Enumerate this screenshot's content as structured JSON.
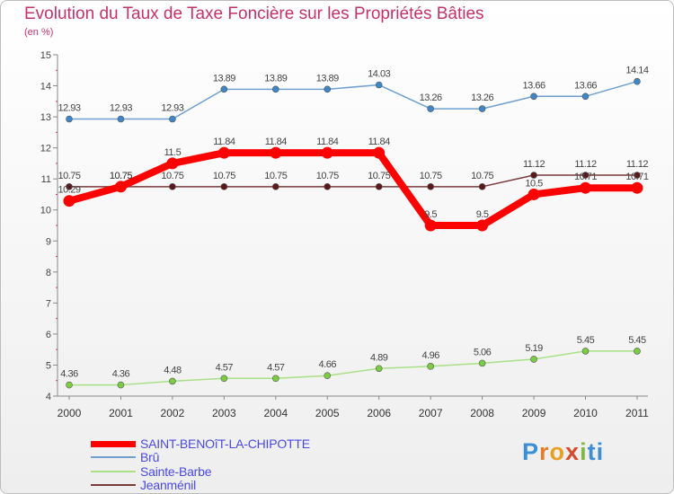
{
  "chart_data": {
    "type": "line",
    "title": "Evolution du Taux de Taxe Foncière sur les Propriétés Bâties",
    "ylabel": "(en %)",
    "xlabel": "",
    "x": [
      "2000",
      "2001",
      "2002",
      "2003",
      "2004",
      "2005",
      "2006",
      "2007",
      "2008",
      "2009",
      "2010",
      "2011"
    ],
    "ylim": [
      4,
      15
    ],
    "yticks": [
      "4",
      "5",
      "6",
      "7",
      "8",
      "9",
      "10",
      "11",
      "12",
      "13",
      "14",
      "15"
    ],
    "series": [
      {
        "name": "Brû",
        "color": "#6fa0cf",
        "point": "#3f86c6",
        "values": [
          12.93,
          12.93,
          12.93,
          13.89,
          13.89,
          13.89,
          14.03,
          13.26,
          13.26,
          13.66,
          13.66,
          14.14
        ],
        "labels": [
          "12.93",
          "12.93",
          "12.93",
          "13.89",
          "13.89",
          "13.89",
          "14.03",
          "13.26",
          "13.26",
          "13.66",
          "13.66",
          "14.14"
        ]
      },
      {
        "name": "Sainte-Barbe",
        "color": "#a8e086",
        "point": "#7ccc42",
        "values": [
          4.36,
          4.36,
          4.48,
          4.57,
          4.57,
          4.66,
          4.89,
          4.96,
          5.06,
          5.19,
          5.45,
          5.45
        ],
        "labels": [
          "4.36",
          "4.36",
          "4.48",
          "4.57",
          "4.57",
          "4.66",
          "4.89",
          "4.96",
          "5.06",
          "5.19",
          "5.45",
          "5.45"
        ]
      },
      {
        "name": "Jeanménil",
        "color": "#7a3a3a",
        "point": "#5a1818",
        "values": [
          10.75,
          10.75,
          10.75,
          10.75,
          10.75,
          10.75,
          10.75,
          10.75,
          10.75,
          11.12,
          11.12,
          11.12
        ],
        "labels": [
          "10.75",
          "10.75",
          "10.75",
          "10.75",
          "10.75",
          "10.75",
          "10.75",
          "10.75",
          "10.75",
          "11.12",
          "11.12",
          "11.12"
        ]
      },
      {
        "name": "SAINT-BENOîT-LA-CHIPOTTE",
        "color": "#ff0000",
        "point": "#ff0000",
        "values": [
          10.29,
          10.75,
          11.5,
          11.84,
          11.84,
          11.84,
          11.84,
          9.5,
          9.5,
          10.5,
          10.71,
          10.71
        ],
        "labels": [
          "10.29",
          "10.75",
          "11.5",
          "11.84",
          "11.84",
          "11.84",
          "11.84",
          "9.5",
          "9.5",
          "10.5",
          "10.71",
          "10.71"
        ]
      }
    ],
    "legend": [
      "SAINT-BENOîT-LA-CHIPOTTE",
      "Brû",
      "Sainte-Barbe",
      "Jeanménil"
    ],
    "legend_position": "bottom-left",
    "grid": false
  },
  "brand": [
    "P",
    "r",
    "o",
    "x",
    "i",
    "ti"
  ]
}
